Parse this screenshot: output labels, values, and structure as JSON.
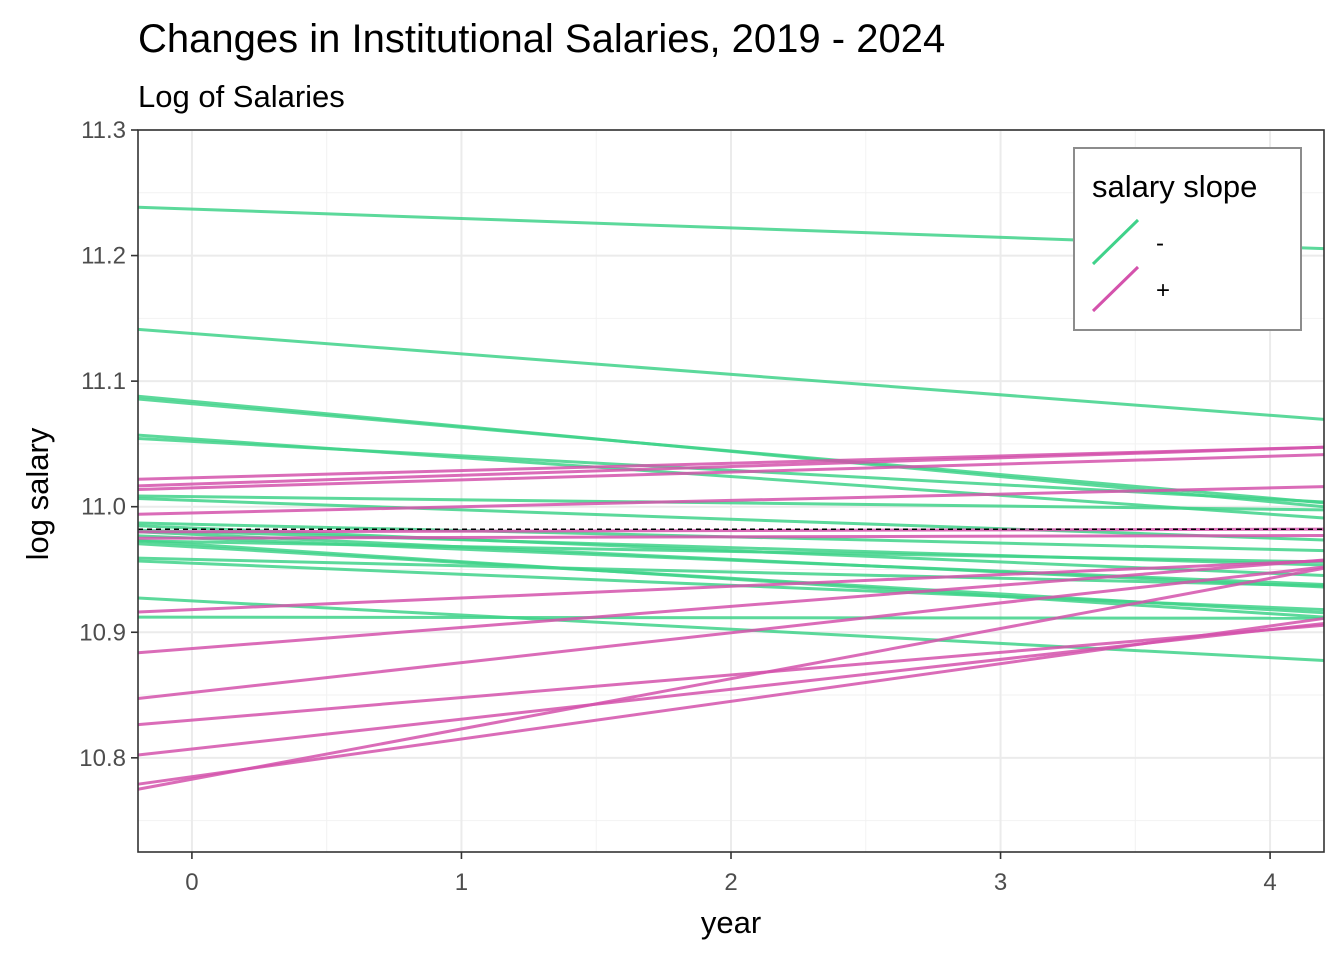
{
  "chart_data": {
    "type": "line",
    "title": "Changes in Institutional Salaries, 2019 - 2024",
    "subtitle": "Log of Salaries",
    "xlabel": "year",
    "ylabel": "log salary",
    "xlim": [
      -0.2,
      4.2
    ],
    "ylim": [
      10.725,
      11.3
    ],
    "xticks": [
      0,
      1,
      2,
      3,
      4
    ],
    "xtick_labels": [
      "0",
      "1",
      "2",
      "3",
      "4"
    ],
    "yticks": [
      10.8,
      10.9,
      11.0,
      11.1,
      11.2,
      11.3
    ],
    "ytick_labels": [
      "10.8",
      "10.9",
      "11.0",
      "11.1",
      "11.2",
      "11.3"
    ],
    "grid": true,
    "reference_line": {
      "y": 10.982,
      "style": "dashed"
    },
    "legend": {
      "title": "salary slope",
      "position": "top-right",
      "entries": [
        {
          "label": "-",
          "color": "#3fd28a"
        },
        {
          "label": "+",
          "color": "#d452ac"
        }
      ]
    },
    "series": [
      {
        "group": "-",
        "start": 11.237,
        "slope": -0.0075
      },
      {
        "group": "-",
        "start": 11.138,
        "slope": -0.0163
      },
      {
        "group": "-",
        "start": 11.084,
        "slope": -0.02
      },
      {
        "group": "-",
        "start": 11.082,
        "slope": -0.0188
      },
      {
        "group": "-",
        "start": 11.054,
        "slope": -0.015
      },
      {
        "group": "-",
        "start": 11.052,
        "slope": -0.0115
      },
      {
        "group": "-",
        "start": 11.008,
        "slope": -0.0025
      },
      {
        "group": "-",
        "start": 11.005,
        "slope": -0.0075
      },
      {
        "group": "-",
        "start": 10.986,
        "slope": -0.005
      },
      {
        "group": "-",
        "start": 10.983,
        "slope": -0.009
      },
      {
        "group": "-",
        "start": 10.98,
        "slope": -0.0063
      },
      {
        "group": "-",
        "start": 10.978,
        "slope": -0.01
      },
      {
        "group": "-",
        "start": 10.975,
        "slope": -0.0088
      },
      {
        "group": "-",
        "start": 10.972,
        "slope": -0.0038
      },
      {
        "group": "-",
        "start": 10.97,
        "slope": -0.0138
      },
      {
        "group": "-",
        "start": 10.968,
        "slope": -0.0125
      },
      {
        "group": "-",
        "start": 10.958,
        "slope": -0.005
      },
      {
        "group": "-",
        "start": 10.955,
        "slope": -0.0088
      },
      {
        "group": "-",
        "start": 10.925,
        "slope": -0.0113
      },
      {
        "group": "-",
        "start": 10.912,
        "slope": -0.0002
      },
      {
        "group": "+",
        "start": 11.023,
        "slope": 0.0058
      },
      {
        "group": "+",
        "start": 11.018,
        "slope": 0.007
      },
      {
        "group": "+",
        "start": 11.015,
        "slope": 0.0063
      },
      {
        "group": "+",
        "start": 10.995,
        "slope": 0.005
      },
      {
        "group": "+",
        "start": 10.98,
        "slope": 0.0005
      },
      {
        "group": "+",
        "start": 10.975,
        "slope": 0.0005
      },
      {
        "group": "+",
        "start": 10.918,
        "slope": 0.0093
      },
      {
        "group": "+",
        "start": 10.887,
        "slope": 0.0168
      },
      {
        "group": "+",
        "start": 10.852,
        "slope": 0.0238
      },
      {
        "group": "+",
        "start": 10.83,
        "slope": 0.018
      },
      {
        "group": "+",
        "start": 10.807,
        "slope": 0.0238
      },
      {
        "group": "+",
        "start": 10.785,
        "slope": 0.03
      },
      {
        "group": "+",
        "start": 10.783,
        "slope": 0.04
      }
    ]
  }
}
